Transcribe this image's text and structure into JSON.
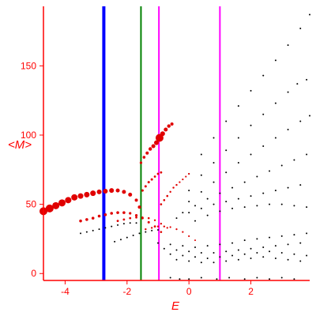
{
  "chart_data": {
    "type": "scatter",
    "title": "",
    "xlabel": "E",
    "ylabel": "<M>",
    "xlim": [
      -4.7,
      3.9
    ],
    "ylim": [
      -5,
      193
    ],
    "x_ticks": [
      -4,
      -2,
      0,
      2
    ],
    "x_tick_labels": [
      "-4",
      "-2",
      "0",
      "2"
    ],
    "y_ticks": [
      0,
      50,
      100,
      150
    ],
    "y_tick_labels": [
      "0",
      "50",
      "100",
      "150"
    ],
    "grid": false,
    "legend": "none",
    "colors": {
      "axes": "#ff0000",
      "black_points": "#000000",
      "red_points": "#e00000",
      "blue_line": "#0000ff",
      "green_line": "#008000",
      "magenta_line": "#ff00ff"
    },
    "vertical_lines": [
      {
        "x": -2.75,
        "color": "#0000ff",
        "width": 4
      },
      {
        "x": -1.55,
        "color": "#008000",
        "width": 2
      },
      {
        "x": -0.97,
        "color": "#ff00ff",
        "width": 2
      },
      {
        "x": 1.0,
        "color": "#ff00ff",
        "width": 2
      }
    ],
    "red_series": [
      {
        "x": [
          -4.7,
          -4.5,
          -4.3,
          -4.1,
          -3.9,
          -3.7,
          -3.5,
          -3.3,
          -3.1,
          -2.9,
          -2.7,
          -2.5,
          -2.3,
          -2.1,
          -1.9,
          -1.7,
          -1.6
        ],
        "y": [
          45,
          47,
          49,
          51,
          53,
          55,
          56,
          57,
          58,
          59,
          59.5,
          60,
          60,
          59,
          57,
          53,
          48
        ],
        "size": [
          5,
          5,
          4.5,
          4.5,
          4,
          4,
          3.5,
          3.5,
          3.5,
          3,
          3,
          3,
          2.5,
          2.5,
          2.5,
          2,
          2
        ]
      },
      {
        "x": [
          -3.5,
          -3.3,
          -3.1,
          -2.9,
          -2.7,
          -2.5,
          -2.3,
          -2.1,
          -1.9,
          -1.7,
          -1.5,
          -1.3,
          -1.1,
          -0.9
        ],
        "y": [
          38,
          39,
          40,
          41.5,
          42.5,
          43.5,
          44,
          44,
          43.5,
          42,
          40,
          37,
          34,
          30
        ],
        "size": [
          1.8,
          1.8,
          1.8,
          1.8,
          1.8,
          1.8,
          1.8,
          1.8,
          1.6,
          1.6,
          1.5,
          1.5,
          1.4,
          1.3
        ]
      },
      {
        "x": [
          -2.3,
          -2.1,
          -1.9,
          -1.7,
          -1.5,
          -1.3,
          -1.1,
          -0.9,
          -0.7
        ],
        "y": [
          38,
          39,
          40,
          40.5,
          40.5,
          40,
          38.5,
          36,
          33
        ],
        "size": [
          1.4,
          1.4,
          1.4,
          1.4,
          1.3,
          1.3,
          1.2,
          1.2,
          1.1
        ]
      },
      {
        "x": [
          -1.55,
          -1.45,
          -1.35,
          -1.25,
          -1.15,
          -1.05,
          -0.95,
          -0.85,
          -0.75,
          -0.65,
          -0.55
        ],
        "y": [
          80,
          84,
          87,
          90,
          92,
          94.5,
          98,
          101,
          104,
          106.5,
          108
        ],
        "size": [
          1.6,
          1.8,
          2,
          2.2,
          2.5,
          3,
          5,
          3,
          2.5,
          2.2,
          2
        ]
      },
      {
        "x": [
          -1.5,
          -1.4,
          -1.3,
          -1.2,
          -1.1,
          -1.0,
          -0.9
        ],
        "y": [
          60,
          63,
          66,
          68,
          70,
          72,
          73
        ],
        "size": [
          1.5,
          1.5,
          1.5,
          1.5,
          1.4,
          1.4,
          1.4
        ]
      },
      {
        "x": [
          -0.9,
          -0.8,
          -0.7,
          -0.6,
          -0.5,
          -0.4,
          -0.3,
          -0.2,
          -0.1,
          0.0
        ],
        "y": [
          50,
          53,
          56,
          59,
          62,
          64,
          66,
          68,
          70,
          72
        ],
        "size": [
          1.3,
          1.3,
          1.3,
          1.2,
          1.2,
          1.2,
          1.1,
          1.1,
          1.1,
          1.1
        ]
      },
      {
        "x": [
          -1.4,
          -1.2,
          -1.0,
          -0.8,
          -0.6,
          -0.4,
          -0.2,
          0.0,
          0.2
        ],
        "y": [
          32,
          33,
          34,
          34,
          33.5,
          32,
          30,
          27,
          24
        ],
        "size": [
          1.2,
          1.2,
          1.2,
          1.2,
          1.1,
          1.1,
          1.1,
          1.1,
          1
        ]
      }
    ],
    "black_series": [
      {
        "x": [
          0.0,
          0.4,
          0.8,
          1.2,
          1.6,
          2.0,
          2.4,
          2.8,
          3.2,
          3.6,
          3.9
        ],
        "y": [
          72,
          86,
          98,
          110,
          121,
          132,
          143,
          154,
          165,
          177,
          187
        ]
      },
      {
        "x": [
          0.0,
          0.4,
          0.8,
          1.2,
          1.6,
          2.0,
          2.4,
          2.8,
          3.2,
          3.5,
          3.8
        ],
        "y": [
          60,
          71,
          80,
          89,
          98,
          107,
          115,
          123,
          131,
          137,
          140
        ]
      },
      {
        "x": [
          0.0,
          0.4,
          0.8,
          1.2,
          1.6,
          2.0,
          2.4,
          2.8,
          3.2,
          3.6,
          3.9
        ],
        "y": [
          52,
          59,
          66,
          73,
          80,
          86,
          92,
          98,
          104,
          110,
          114
        ]
      },
      {
        "x": [
          -0.2,
          0.2,
          0.6,
          1.0,
          1.4,
          1.8,
          2.2,
          2.6,
          3.0,
          3.4,
          3.8
        ],
        "y": [
          44,
          49,
          54,
          58,
          62,
          66,
          70,
          74,
          78,
          82,
          86
        ]
      },
      {
        "x": [
          -0.4,
          0.0,
          0.4,
          0.8,
          1.2,
          1.6,
          2.0,
          2.4,
          2.8,
          3.2,
          3.6
        ],
        "y": [
          40,
          44,
          47,
          50,
          52,
          54,
          56,
          58,
          60,
          62,
          64
        ]
      },
      {
        "x": [
          0.2,
          0.6,
          1.0,
          1.4,
          1.8,
          2.2,
          2.6,
          3.0,
          3.4,
          3.8
        ],
        "y": [
          38,
          42,
          45,
          47,
          48,
          49,
          50,
          50,
          49,
          48
        ]
      },
      {
        "x": [
          -3.5,
          -3.3,
          -3.1,
          -2.9,
          -2.7,
          -2.5,
          -2.3,
          -2.1,
          -1.9,
          -1.7
        ],
        "y": [
          29,
          30,
          31,
          32,
          33,
          34,
          35,
          36,
          36.5,
          36.5
        ]
      },
      {
        "x": [
          -2.4,
          -2.2,
          -2.0,
          -1.8,
          -1.6,
          -1.4,
          -1.2,
          -1.0
        ],
        "y": [
          23,
          24.5,
          26,
          27.5,
          29,
          30,
          31,
          31.5
        ]
      },
      {
        "x": [
          -1.0,
          -0.6,
          -0.2,
          0.2,
          0.6,
          1.0,
          1.4,
          1.8,
          2.2,
          2.6,
          3.0,
          3.4,
          3.8
        ],
        "y": [
          22,
          21,
          20,
          19,
          20,
          21,
          22,
          24,
          25,
          26,
          27,
          28,
          29
        ]
      },
      {
        "x": [
          -0.8,
          -0.4,
          0.0,
          0.4,
          0.8,
          1.2,
          1.6,
          2.0,
          2.4,
          2.8,
          3.2,
          3.6
        ],
        "y": [
          18,
          17,
          16,
          15,
          15,
          16,
          17,
          18,
          19,
          20,
          21,
          22
        ]
      },
      {
        "x": [
          -0.6,
          -0.2,
          0.2,
          0.6,
          1.0,
          1.4,
          1.8,
          2.2,
          2.6,
          3.0,
          3.4,
          3.8
        ],
        "y": [
          14,
          13,
          12,
          11,
          12,
          13,
          14,
          15,
          16,
          15,
          14,
          13
        ]
      },
      {
        "x": [
          -0.4,
          0.0,
          0.4,
          0.8,
          1.2,
          1.6,
          2.0,
          2.4,
          2.8,
          3.2,
          3.6
        ],
        "y": [
          10,
          9,
          8,
          8,
          9,
          10,
          11,
          12,
          11,
          10,
          9
        ]
      },
      {
        "x": [
          -0.6,
          -0.3,
          0.0,
          0.4,
          0.9,
          1.3,
          1.8,
          2.2,
          2.6,
          3.0,
          3.4
        ],
        "y": [
          -3,
          -4,
          -4,
          -3,
          -4,
          -3,
          -4,
          -3,
          -4,
          -3,
          -4
        ]
      }
    ]
  }
}
